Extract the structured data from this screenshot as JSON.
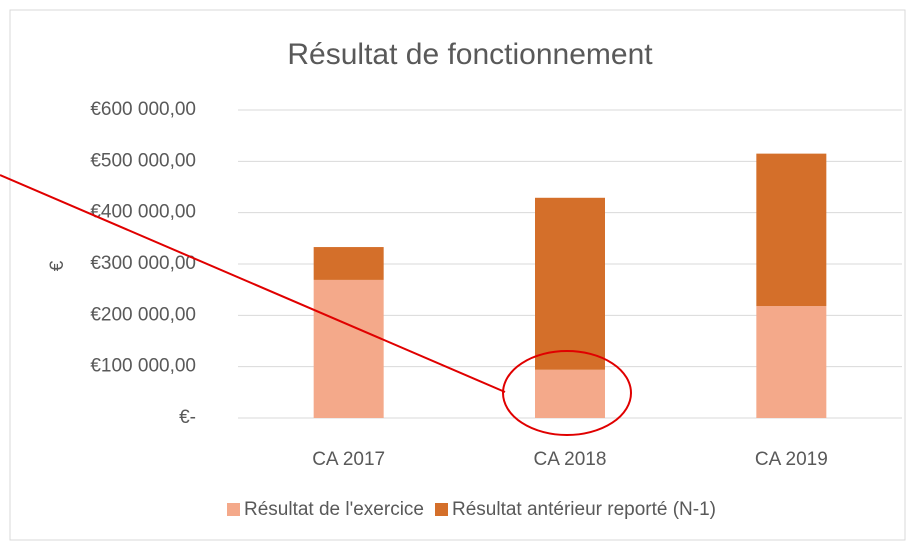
{
  "chart_data": {
    "type": "stacked_bar",
    "title": "Résultat de fonctionnement",
    "y_label": "€",
    "categories": [
      "CA 2017",
      "CA 2018",
      "CA 2019"
    ],
    "series": [
      {
        "name": "Résultat de l'exercice",
        "color": "#f4a98a",
        "values": [
          269000,
          94000,
          218000
        ]
      },
      {
        "name": "Résultat antérieur reporté (N-1)",
        "color": "#d46f2a",
        "values": [
          64000,
          335000,
          297000
        ]
      }
    ],
    "ylim": [
      0,
      600000
    ],
    "yticks": [
      {
        "value": 0,
        "label": "€-"
      },
      {
        "value": 100000,
        "label": "€100 000,00"
      },
      {
        "value": 200000,
        "label": "€200 000,00"
      },
      {
        "value": 300000,
        "label": "€300 000,00"
      },
      {
        "value": 400000,
        "label": "€400 000,00"
      },
      {
        "value": 500000,
        "label": "€500 000,00"
      },
      {
        "value": 600000,
        "label": "€600 000,00"
      }
    ],
    "grid": true,
    "legend": "bottom"
  }
}
